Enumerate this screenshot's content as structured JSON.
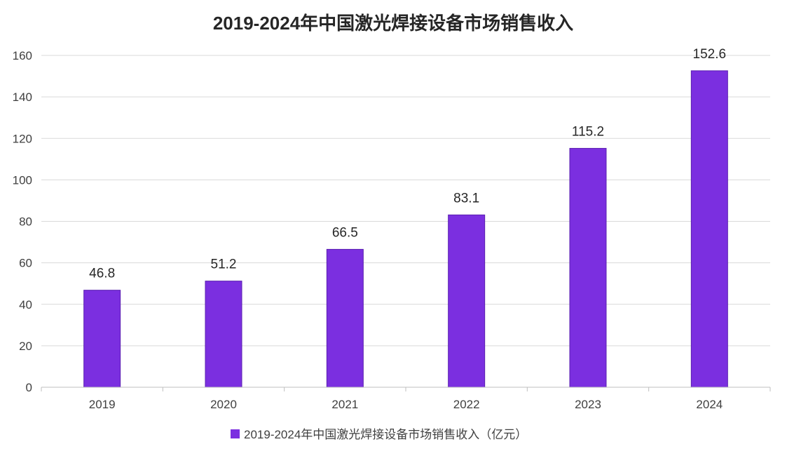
{
  "chart_data": {
    "type": "bar",
    "title": "2019-2024年中国激光焊接设备市场销售收入",
    "categories": [
      "2019",
      "2020",
      "2021",
      "2022",
      "2023",
      "2024"
    ],
    "series": [
      {
        "name": "2019-2024年中国激光焊接设备市场销售收入（亿元）",
        "values": [
          46.8,
          51.2,
          66.5,
          83.1,
          115.2,
          152.6
        ],
        "value_labels": [
          "46.8",
          "51.2",
          "66.5",
          "83.1",
          "115.2",
          "152.6"
        ],
        "color": "#7b2fe0",
        "border_color": "#5a1fb0"
      }
    ],
    "xlabel": "",
    "ylabel": "",
    "ylim": [
      0,
      160
    ],
    "yticks": [
      0,
      20,
      40,
      60,
      80,
      100,
      120,
      140,
      160
    ],
    "grid": true,
    "legend_position": "bottom"
  }
}
